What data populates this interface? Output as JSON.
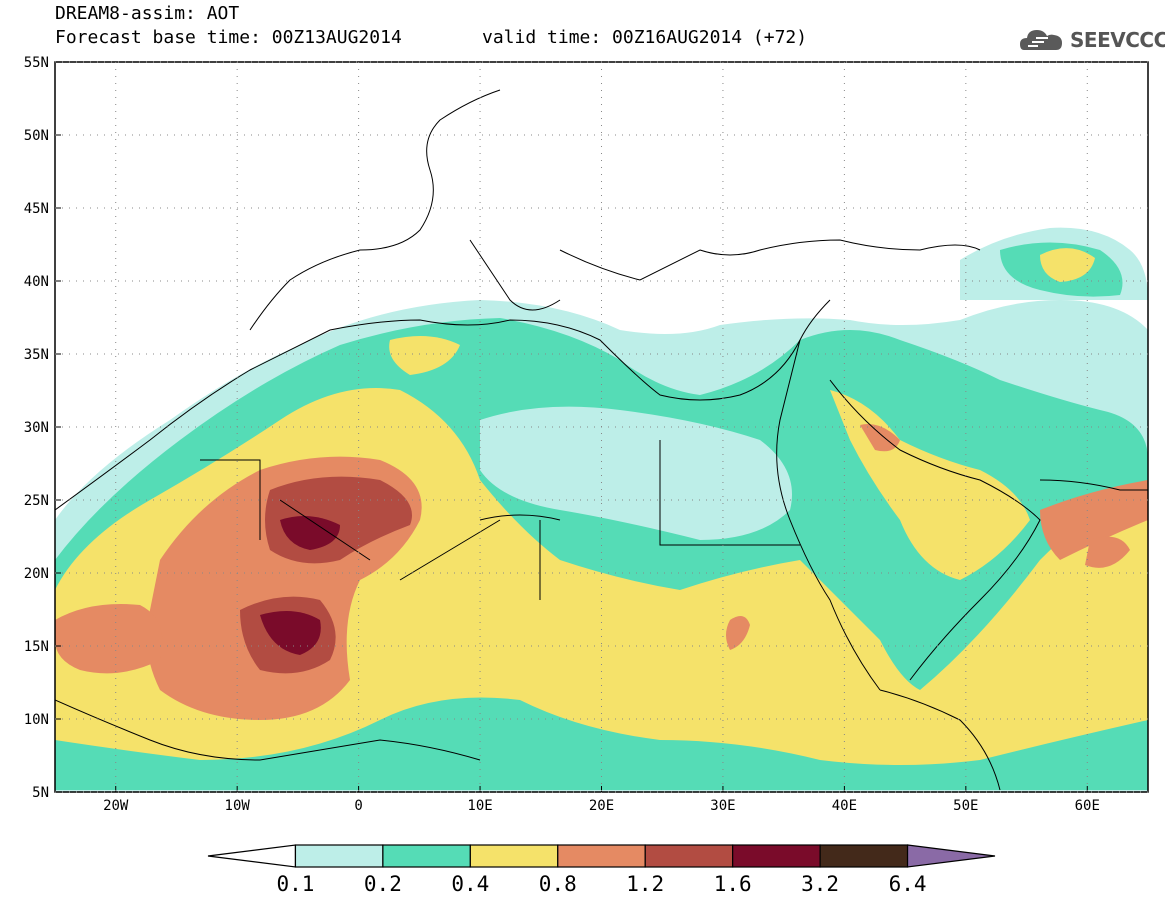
{
  "header": {
    "line1": "DREAM8-assim: AOT",
    "line2": "Forecast base time: 00Z13AUG2014",
    "line3": "valid time: 00Z16AUG2014 (+72)",
    "logo_text": "SEEVCCC",
    "logo_icon": "cloud-icon"
  },
  "axes": {
    "lat_ticks": [
      "55N",
      "50N",
      "45N",
      "40N",
      "35N",
      "30N",
      "25N",
      "20N",
      "15N",
      "10N",
      "5N"
    ],
    "lat_values": [
      55,
      50,
      45,
      40,
      35,
      30,
      25,
      20,
      15,
      10,
      5
    ],
    "lon_ticks": [
      "20W",
      "10W",
      "0",
      "10E",
      "20E",
      "30E",
      "40E",
      "50E",
      "60E"
    ],
    "lon_values": [
      -20,
      -10,
      0,
      10,
      20,
      30,
      40,
      50,
      60
    ],
    "lon_range": [
      -25,
      65
    ],
    "lat_range": [
      5,
      55
    ]
  },
  "colorbar": {
    "labels": [
      "0.1",
      "0.2",
      "0.4",
      "0.8",
      "1.2",
      "1.6",
      "3.2",
      "6.4"
    ],
    "colors": [
      "#ffffff",
      "#bdeee8",
      "#55dcb6",
      "#f5e26a",
      "#e58a63",
      "#b24c42",
      "#7a0b2a",
      "#43291a",
      "#8a6aa6"
    ]
  }
}
